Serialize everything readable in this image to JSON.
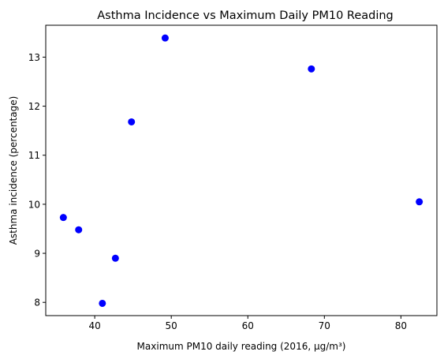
{
  "chart_data": {
    "type": "scatter",
    "title": "Asthma Incidence vs Maximum Daily PM10 Reading",
    "xlabel": "Maximum PM10 daily reading (2016, µg/m³)",
    "ylabel": "Asthma incidence (percentage)",
    "xlim": [
      33.6,
      84.7
    ],
    "ylim": [
      7.73,
      13.65
    ],
    "x_ticks": [
      40,
      50,
      60,
      70,
      80
    ],
    "y_ticks": [
      8,
      9,
      10,
      11,
      12,
      13
    ],
    "points": [
      {
        "x": 35.9,
        "y": 9.73
      },
      {
        "x": 37.9,
        "y": 9.48
      },
      {
        "x": 41.0,
        "y": 7.98
      },
      {
        "x": 42.7,
        "y": 8.9
      },
      {
        "x": 44.8,
        "y": 11.68
      },
      {
        "x": 49.2,
        "y": 13.39
      },
      {
        "x": 68.3,
        "y": 12.76
      },
      {
        "x": 82.4,
        "y": 10.05
      }
    ],
    "marker_color": "#0000ff",
    "grid": false,
    "legend": null
  }
}
